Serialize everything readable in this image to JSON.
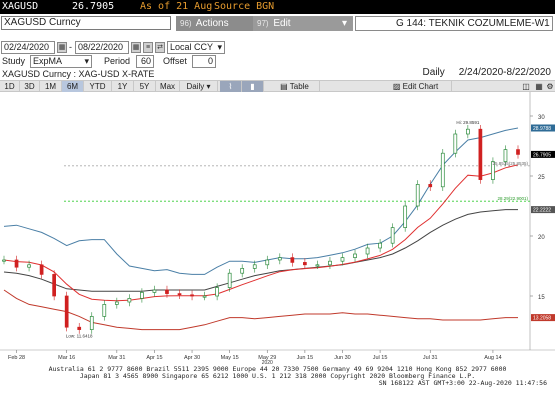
{
  "ticker": {
    "symbol": "XAGUSD",
    "price": "26.7905",
    "as_of": "As of 21 Aug",
    "source": "Source BGN"
  },
  "header": {
    "security": "XAGUSD Curncy",
    "actions_num": "96)",
    "actions_label": "Actions",
    "edit_num": "97)",
    "edit_label": "Edit",
    "title": "G 144: TEKNIK COZUMLEME-W1"
  },
  "range": {
    "start": "02/24/2020",
    "end": "08/22/2020",
    "currency": "Local CCY"
  },
  "study": {
    "label": "Study",
    "value": "ExpMA",
    "period_label": "Period",
    "period_value": "60",
    "offset_label": "Offset",
    "offset_value": "0"
  },
  "info": {
    "left": "XAGUSD Curncy : XAG-USD X-RATE",
    "frequency": "Daily",
    "range": "2/24/2020-8/22/2020"
  },
  "toolbar": {
    "periods": [
      "1D",
      "3D",
      "1M",
      "6M",
      "YTD",
      "1Y",
      "5Y",
      "Max"
    ],
    "active_period": "6M",
    "frequency": "Daily",
    "table_label": "Table",
    "edit_chart_label": "Edit Chart"
  },
  "chart": {
    "y_ticks": [
      "30",
      "25",
      "20",
      "15"
    ],
    "x_ticks": [
      "Feb 28",
      "Mar 16",
      "Mar 31",
      "Apr 15",
      "Apr 30",
      "May 15",
      "May 29",
      "Jun 15",
      "Jun 30",
      "Jul 15",
      "Jul 31",
      "Aug 14"
    ],
    "year_label": "2020",
    "annotations": {
      "high": "Hi: 29.8591",
      "low": "Low: 11.6418",
      "level_mid": "25.8535(25.8535)",
      "level_low": "28.29(22.9001)"
    },
    "right_labels": [
      {
        "text": "28.9788",
        "color": "#2e6b96"
      },
      {
        "text": "26.7905",
        "color": "#000000"
      },
      {
        "text": "22.2222",
        "color": "#555555"
      },
      {
        "text": "13.2058",
        "color": "#c0392b"
      }
    ],
    "colors": {
      "upper_band": "#4a7fa6",
      "ema_short": "#e03030",
      "ema_long": "#444444",
      "lower_band": "#c0392b",
      "up_candle": "#2a8a3a",
      "down_candle": "#d02020",
      "level_gray": "#aaaaaa",
      "level_green": "#33cc33"
    }
  },
  "footer": {
    "line1": "Australia 61 2 9777 8600 Brazil 5511 2395 9000 Europe 44 20 7330 7500 Germany 49 69 9204 1210 Hong Kong 852 2977 6000",
    "line2": "Japan 81 3 4565 8900       Singapore 65 6212 1000       U.S. 1 212 318 2000      Copyright 2020 Bloomberg Finance L.P.",
    "line3": "SN 168122 AST  GMT+3:00 22-Aug-2020 11:47:56"
  },
  "chart_data": {
    "type": "line",
    "title": "",
    "xlabel": "",
    "ylabel": "",
    "ylim": [
      10.5,
      31.5
    ],
    "x": [
      "Feb 24",
      "Feb 28",
      "Mar 5",
      "Mar 9",
      "Mar 13",
      "Mar 16",
      "Mar 19",
      "Mar 24",
      "Mar 27",
      "Mar 31",
      "Apr 3",
      "Apr 8",
      "Apr 15",
      "Apr 21",
      "Apr 27",
      "Apr 30",
      "May 6",
      "May 12",
      "May 15",
      "May 20",
      "May 26",
      "May 29",
      "Jun 4",
      "Jun 10",
      "Jun 15",
      "Jun 19",
      "Jun 25",
      "Jun 30",
      "Jul 6",
      "Jul 10",
      "Jul 15",
      "Jul 20",
      "Jul 23",
      "Jul 27",
      "Jul 31",
      "Aug 5",
      "Aug 7",
      "Aug 10",
      "Aug 12",
      "Aug 14",
      "Aug 18",
      "Aug 21"
    ],
    "series": [
      {
        "values": [
          18.0,
          17.4,
          17.6,
          16.8,
          15.0,
          12.4,
          12.2,
          13.3,
          14.3,
          14.5,
          14.8,
          15.3,
          15.5,
          15.2,
          15.1,
          15.0,
          15.0,
          15.7,
          16.9,
          17.3,
          17.6,
          18.0,
          18.2,
          17.8,
          17.6,
          17.6,
          17.9,
          18.2,
          18.5,
          19.0,
          19.4,
          20.7,
          22.5,
          24.3,
          24.1,
          26.9,
          28.5,
          28.9,
          24.7,
          26.2,
          27.2,
          26.8
        ]
      },
      {
        "values": [
          20.8,
          20.9,
          20.6,
          20.3,
          19.8,
          19.2,
          19.6,
          19.7,
          19.7,
          18.5,
          17.5,
          17.3,
          17.1,
          17.2,
          16.9,
          16.8,
          16.8,
          17.4,
          17.9,
          17.9,
          17.8,
          18.0,
          18.2,
          18.1,
          18.1,
          18.2,
          18.4,
          18.6,
          18.9,
          19.3,
          19.4,
          20.0,
          21.2,
          22.6,
          24.3,
          25.9,
          27.0,
          28.0,
          28.2,
          28.5,
          28.8,
          29.0
        ]
      },
      {
        "values": [
          17.0,
          16.9,
          16.7,
          16.4,
          16.0,
          15.6,
          15.5,
          15.4,
          15.4,
          15.4,
          15.4,
          15.4,
          15.5,
          15.5,
          15.5,
          15.5,
          15.5,
          15.8,
          16.1,
          16.4,
          16.7,
          16.9,
          17.1,
          17.2,
          17.3,
          17.4,
          17.5,
          17.6,
          17.8,
          18.0,
          18.2,
          18.5,
          19.0,
          19.6,
          20.3,
          20.9,
          21.4,
          21.8,
          22.0,
          22.1,
          22.2,
          22.2
        ]
      },
      {
        "values": [
          15.5,
          14.8,
          14.3,
          14.1,
          13.9,
          13.7,
          13.3,
          12.8,
          12.6,
          12.4,
          12.3,
          12.2,
          12.2,
          12.2,
          12.2,
          12.4,
          12.6,
          12.9,
          13.2,
          13.2,
          13.1,
          13.2,
          13.3,
          13.4,
          13.5,
          13.5,
          13.5,
          13.6,
          13.5,
          13.5,
          13.4,
          13.3,
          13.2,
          13.1,
          13.1,
          13.0,
          13.0,
          13.0,
          13.0,
          13.1,
          13.2,
          13.2
        ]
      }
    ],
    "reference_lines": [
      25.85,
      22.9
    ]
  }
}
